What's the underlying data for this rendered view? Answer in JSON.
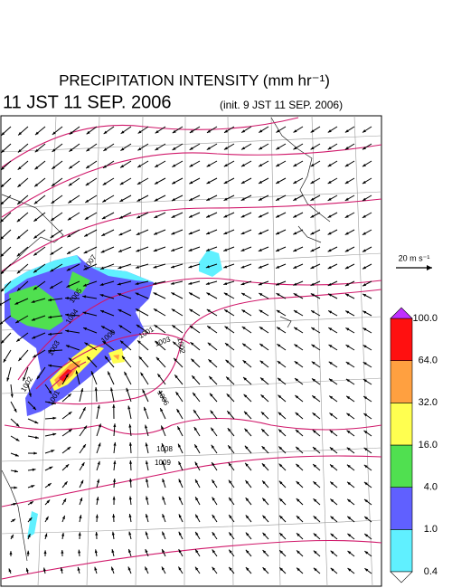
{
  "header": {
    "title": "PRECIPITATION INTENSITY (mm hr⁻¹)",
    "valid_time": "11 JST 11 SEP. 2006",
    "init_time": "(init. 9 JST 11 SEP. 2006)"
  },
  "scale": {
    "label": "20 m s⁻¹"
  },
  "map": {
    "contour_labels": [
      "1007",
      "1005",
      "1004",
      "1003",
      "1002",
      "1001",
      "1000",
      "1001",
      "1002",
      "1003",
      "1006",
      "1008",
      "1009"
    ]
  },
  "colorbar": {
    "levels": [
      {
        "value": 0.4,
        "label": "0.4"
      },
      {
        "value": 1,
        "label": "1.0"
      },
      {
        "value": 4,
        "label": "4.0"
      },
      {
        "value": 16,
        "label": "16.0"
      },
      {
        "value": 32,
        "label": "32.0"
      },
      {
        "value": 64,
        "label": "64.0"
      },
      {
        "value": 100,
        "label": "100.0"
      }
    ],
    "colors": [
      "#60f0ff",
      "#6060ff",
      "#50e050",
      "#ffff50",
      "#ffa040",
      "#ff1010"
    ],
    "under_color": "#ffffff",
    "over_color": "#c030ff"
  }
}
